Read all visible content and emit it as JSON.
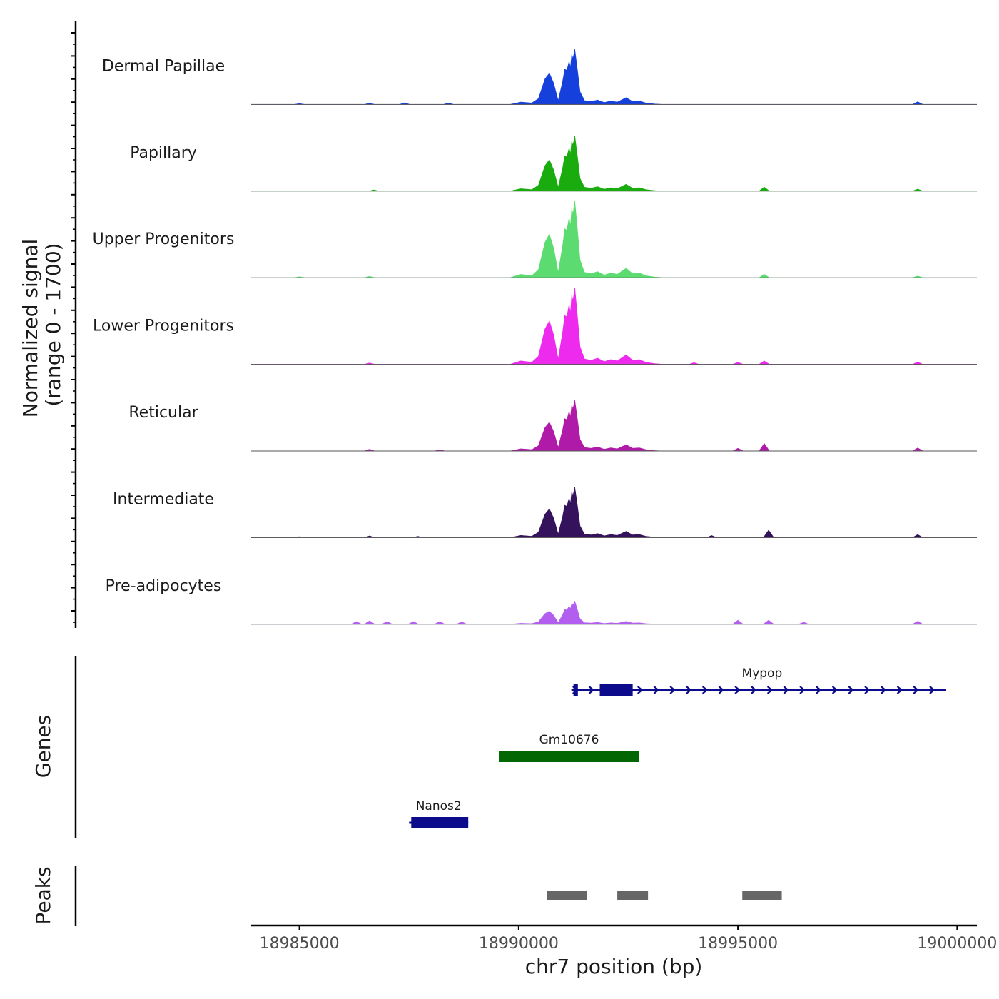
{
  "chart_data": {
    "type": "area",
    "title": "",
    "ylabel": "Normalized signal",
    "ylabel_range": "(range 0 - 1700)",
    "ylim": [
      0,
      1700
    ],
    "xlabel": "chr7 position (bp)",
    "xlim": [
      18983900,
      19000450
    ],
    "x_ticks": [
      18985000,
      18990000,
      18995000,
      19000000
    ],
    "x_tick_labels": [
      "18985000",
      "18990000",
      "18995000",
      "19000000"
    ],
    "tracks": [
      {
        "name": "Dermal Papillae",
        "color": "#1540dc",
        "scale": 0.72,
        "noise": [
          [
            18985000,
            15
          ],
          [
            18986600,
            20
          ],
          [
            18987400,
            25
          ],
          [
            18988400,
            22
          ],
          [
            18999100,
            40
          ]
        ]
      },
      {
        "name": "Papillary",
        "color": "#1aac0f",
        "scale": 0.72,
        "noise": [
          [
            18986700,
            18
          ],
          [
            18995600,
            60
          ],
          [
            18999100,
            30
          ]
        ]
      },
      {
        "name": "Upper Progenitors",
        "color": "#5cdc70",
        "scale": 1.0,
        "noise": [
          [
            18985000,
            15
          ],
          [
            18986600,
            20
          ],
          [
            18995600,
            50
          ],
          [
            18999100,
            25
          ]
        ]
      },
      {
        "name": "Lower Progenitors",
        "color": "#ee2aee",
        "scale": 1.0,
        "noise": [
          [
            18986600,
            20
          ],
          [
            18994000,
            25
          ],
          [
            18995000,
            30
          ],
          [
            18995600,
            50
          ],
          [
            18999100,
            35
          ]
        ]
      },
      {
        "name": "Reticular",
        "color": "#b01aa8",
        "scale": 0.66,
        "noise": [
          [
            18986600,
            25
          ],
          [
            18988200,
            20
          ],
          [
            18995000,
            40
          ],
          [
            18995600,
            110
          ],
          [
            18999100,
            45
          ]
        ]
      },
      {
        "name": "Intermediate",
        "color": "#35125c",
        "scale": 0.66,
        "noise": [
          [
            18985000,
            15
          ],
          [
            18986600,
            25
          ],
          [
            18987700,
            20
          ],
          [
            18994400,
            30
          ],
          [
            18995700,
            110
          ],
          [
            18999100,
            45
          ]
        ]
      },
      {
        "name": "Pre-adipocytes",
        "color": "#b25ff0",
        "scale": 0.3,
        "noise": [
          [
            18986300,
            40
          ],
          [
            18986600,
            50
          ],
          [
            18987000,
            40
          ],
          [
            18987600,
            40
          ],
          [
            18988200,
            40
          ],
          [
            18988700,
            35
          ],
          [
            18995000,
            60
          ],
          [
            18995700,
            60
          ],
          [
            18996500,
            30
          ],
          [
            18999100,
            45
          ]
        ]
      }
    ],
    "peak_shape": [
      [
        18989800,
        0
      ],
      [
        18990050,
        50
      ],
      [
        18990300,
        30
      ],
      [
        18990450,
        120
      ],
      [
        18990600,
        520
      ],
      [
        18990700,
        640
      ],
      [
        18990800,
        430
      ],
      [
        18990900,
        80
      ],
      [
        18991000,
        460
      ],
      [
        18991050,
        720
      ],
      [
        18991100,
        700
      ],
      [
        18991150,
        880
      ],
      [
        18991180,
        760
      ],
      [
        18991210,
        1020
      ],
      [
        18991240,
        940
      ],
      [
        18991280,
        1130
      ],
      [
        18991330,
        780
      ],
      [
        18991400,
        260
      ],
      [
        18991500,
        80
      ],
      [
        18991650,
        60
      ],
      [
        18991800,
        90
      ],
      [
        18991950,
        40
      ],
      [
        18992100,
        70
      ],
      [
        18992250,
        50
      ],
      [
        18992450,
        140
      ],
      [
        18992600,
        60
      ],
      [
        18992750,
        70
      ],
      [
        18992900,
        30
      ],
      [
        18993100,
        10
      ],
      [
        18993300,
        0
      ]
    ],
    "genes_label": "Genes",
    "peaks_label": "Peaks",
    "genes": [
      {
        "name": "Mypop",
        "start": 18991200,
        "end": 18999750,
        "strand": "+",
        "color": "#0b0b8c",
        "exons": [
          [
            18991250,
            18991350
          ],
          [
            18991850,
            18992600
          ]
        ],
        "row": 0
      },
      {
        "name": "Gm10676",
        "start": 18989550,
        "end": 18992750,
        "strand": "-",
        "color": "#026602",
        "exons": [
          [
            18989550,
            18992750
          ]
        ],
        "row": 1
      },
      {
        "name": "Nanos2",
        "start": 18987500,
        "end": 18988850,
        "strand": "-",
        "color": "#0b0b8c",
        "exons": [
          [
            18987550,
            18988850
          ]
        ],
        "row": 2
      }
    ],
    "peaks": [
      [
        18990650,
        18991550
      ],
      [
        18992250,
        18992950
      ],
      [
        18995100,
        18996000
      ]
    ]
  }
}
